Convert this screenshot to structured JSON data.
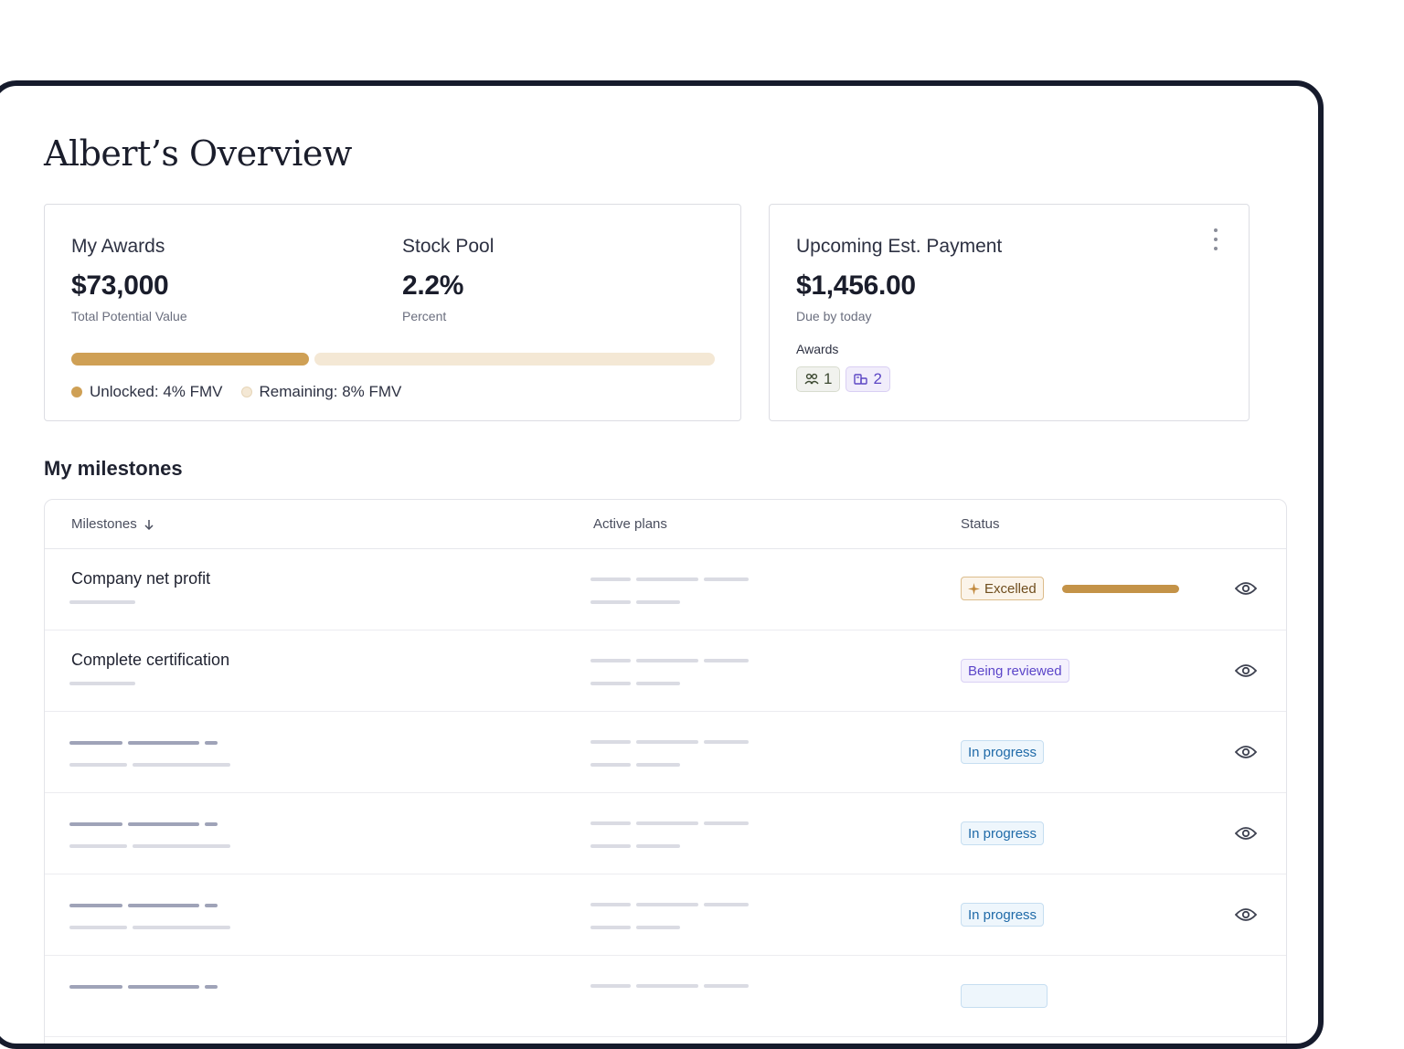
{
  "page": {
    "title": "Albert’s Overview"
  },
  "awards_card": {
    "my_awards": {
      "label": "My Awards",
      "value": "$73,000",
      "sub": "Total Potential Value"
    },
    "stock_pool": {
      "label": "Stock Pool",
      "value": "2.2%",
      "sub": "Percent"
    },
    "progress": {
      "unlocked_fraction": 0.37,
      "unlocked_color": "#cfa055",
      "remaining_color": "#f4e8d5"
    },
    "legend": {
      "unlocked": "Unlocked: 4% FMV",
      "remaining": "Remaining: 8% FMV"
    }
  },
  "payment_card": {
    "label": "Upcoming Est. Payment",
    "value": "$1,456.00",
    "sub": "Due by today",
    "awards_label": "Awards",
    "chips": [
      {
        "icon": "group-icon",
        "count": "1"
      },
      {
        "icon": "stock-icon",
        "count": "2"
      }
    ]
  },
  "milestones": {
    "title": "My milestones",
    "columns": {
      "milestones": "Milestones",
      "active_plans": "Active plans",
      "status": "Status"
    },
    "rows": [
      {
        "title": "Company net profit",
        "status": "Excelled",
        "status_type": "excelled",
        "progress": 1.0
      },
      {
        "title": "Complete certification",
        "status": "Being reviewed",
        "status_type": "review"
      },
      {
        "title": "",
        "status": "In progress",
        "status_type": "progress"
      },
      {
        "title": "",
        "status": "In progress",
        "status_type": "progress"
      },
      {
        "title": "",
        "status": "In progress",
        "status_type": "progress"
      },
      {
        "title": "",
        "status": "",
        "status_type": "progress"
      }
    ]
  }
}
